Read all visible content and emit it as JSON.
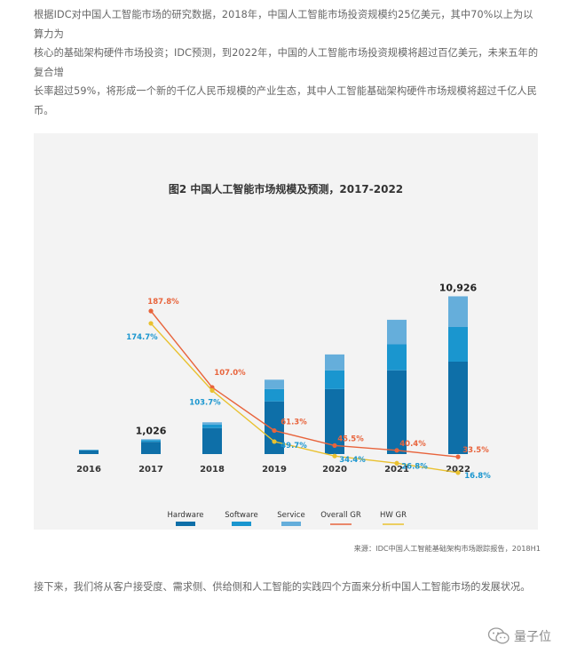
{
  "intro": {
    "line1": "根据IDC对中国人工智能市场的研究数据，2018年，中国人工智能市场投资规模约25亿美元，其中70%以上为以算力为",
    "line2": "核心的基础架构硬件市场投资；IDC预测，到2022年，中国的人工智能市场投资规模将超过百亿美元，未来五年的复合增",
    "line3": "长率超过59%，将形成一个新的千亿人民币规模的产业生态，其中人工智能基础架构硬件市场规模将超过千亿人民币。"
  },
  "source": "来源：IDC中国人工智能基础架构市场跟踪报告，2018H1",
  "outro": "接下来，我们将从客户接受度、需求侧、供给侧和人工智能的实践四个方面来分析中国人工智能市场的发展状况。",
  "watermark": {
    "text": "量子位",
    "icon": "wechat-icon"
  },
  "colors": {
    "hardware": "#0e6fa8",
    "software": "#1a96cf",
    "service": "#65aedb",
    "overall_gr": "#e8643c",
    "hw_gr": "#e9c12f",
    "background": "#f3f3f3"
  },
  "chart_data": {
    "type": "bar",
    "title": "图2 中国人工智能市场规模及预测，2017-2022",
    "categories": [
      "2016",
      "2017",
      "2018",
      "2019",
      "2020",
      "2021",
      "2022"
    ],
    "ylim": [
      0,
      12000
    ],
    "series": [
      {
        "name": "Hardware",
        "values": [
          250,
          850,
          1800,
          3650,
          4500,
          5800,
          6400
        ]
      },
      {
        "name": "Software",
        "values": [
          40,
          120,
          250,
          850,
          1300,
          1800,
          2400
        ]
      },
      {
        "name": "Service",
        "values": [
          10,
          56,
          150,
          650,
          1100,
          1700,
          2126
        ]
      }
    ],
    "bar_labels": [
      {
        "category": "2017",
        "text": "1,026"
      },
      {
        "category": "2022",
        "text": "10,926"
      }
    ],
    "lines": [
      {
        "name": "Overall GR",
        "x": [
          "2017",
          "2018",
          "2019",
          "2020",
          "2021",
          "2022"
        ],
        "values": [
          187.8,
          107.0,
          61.3,
          45.5,
          40.4,
          33.5
        ],
        "labels": [
          "187.8%",
          "107.0%",
          "61.3%",
          "45.5%",
          "40.4%",
          "33.5%"
        ]
      },
      {
        "name": "HW GR",
        "x": [
          "2017",
          "2018",
          "2019",
          "2020",
          "2021",
          "2022"
        ],
        "values": [
          174.7,
          103.7,
          49.7,
          34.4,
          26.8,
          16.8
        ],
        "labels": [
          "174.7%",
          "103.7%",
          "49.7%",
          "34.4%",
          "26.8%",
          "16.8%"
        ]
      }
    ],
    "legend": [
      {
        "name": "Hardware",
        "kind": "bar"
      },
      {
        "name": "Software",
        "kind": "bar"
      },
      {
        "name": "Service",
        "kind": "bar"
      },
      {
        "name": "Overall GR",
        "kind": "line"
      },
      {
        "name": "HW GR",
        "kind": "line"
      }
    ],
    "legend_position": "bottom"
  }
}
